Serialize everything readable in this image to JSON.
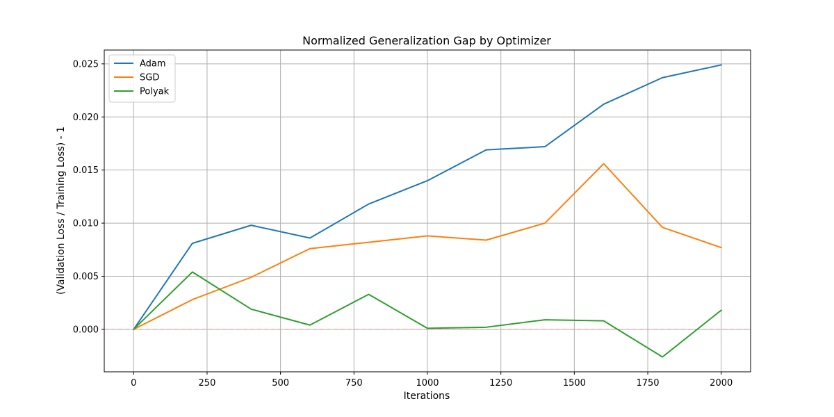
{
  "chart_data": {
    "type": "line",
    "title": "Normalized Generalization Gap by Optimizer",
    "xlabel": "Iterations",
    "ylabel": "(Validation Loss / Training Loss) - 1",
    "xlim": [
      -100,
      2100
    ],
    "ylim": [
      -0.004,
      0.0263
    ],
    "x_ticks": [
      0,
      250,
      500,
      750,
      1000,
      1250,
      1500,
      1750,
      2000
    ],
    "x_tick_labels": [
      "0",
      "250",
      "500",
      "750",
      "1000",
      "1250",
      "1500",
      "1750",
      "2000"
    ],
    "y_ticks": [
      0.0,
      0.005,
      0.01,
      0.015,
      0.02,
      0.025
    ],
    "y_tick_labels": [
      "0.000",
      "0.005",
      "0.010",
      "0.015",
      "0.020",
      "0.025"
    ],
    "grid": true,
    "legend_position": "top-left",
    "x": [
      0,
      200,
      400,
      600,
      800,
      1000,
      1200,
      1400,
      1600,
      1800,
      2000
    ],
    "series": [
      {
        "name": "Adam",
        "color": "#1f77b4",
        "values": [
          0.0,
          0.0081,
          0.0098,
          0.0086,
          0.0118,
          0.014,
          0.0169,
          0.0172,
          0.0212,
          0.0237,
          0.0249
        ]
      },
      {
        "name": "SGD",
        "color": "#ff7f0e",
        "values": [
          0.0,
          0.0028,
          0.0049,
          0.0076,
          0.0082,
          0.0088,
          0.0084,
          0.01,
          0.0156,
          0.0096,
          0.0077
        ]
      },
      {
        "name": "Polyak",
        "color": "#2ca02c",
        "values": [
          0.0,
          0.0054,
          0.0019,
          0.0004,
          0.0033,
          0.0001,
          0.0002,
          0.0009,
          0.0008,
          -0.0026,
          0.0018
        ]
      }
    ],
    "reference_line": {
      "y": 0.0,
      "style": "dashed",
      "color": "#e8a0a0"
    }
  }
}
